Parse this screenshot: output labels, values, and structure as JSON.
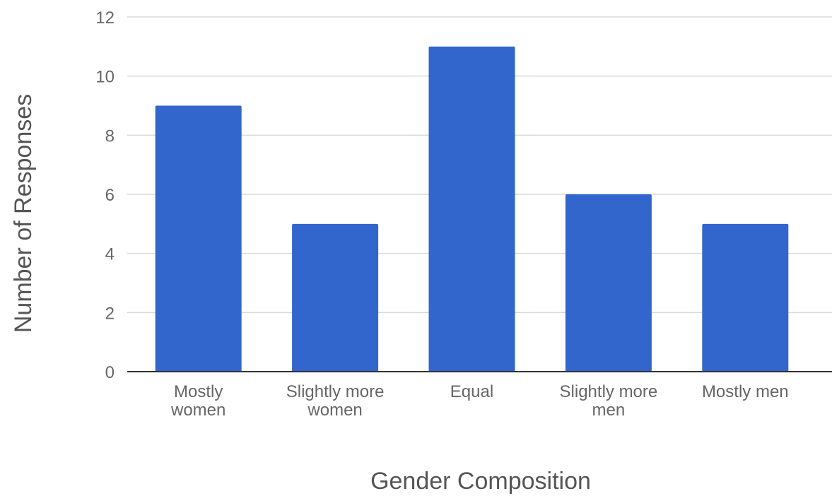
{
  "chart_data": {
    "type": "bar",
    "title": "",
    "xlabel": "Gender Composition",
    "ylabel": "Number of Responses",
    "categories": [
      [
        "Mostly",
        "women"
      ],
      [
        "Slightly more",
        "women"
      ],
      [
        "Equal"
      ],
      [
        "Slightly more",
        "men"
      ],
      [
        "Mostly men"
      ]
    ],
    "values": [
      9,
      5,
      11,
      6,
      5
    ],
    "ylim": [
      0,
      12
    ],
    "yticks": [
      0,
      2,
      4,
      6,
      8,
      10,
      12
    ],
    "grid": true,
    "legend": "none"
  },
  "colors": {
    "bar": "#3366cc",
    "grid": "#d9d9d9",
    "axis": "#333333"
  }
}
